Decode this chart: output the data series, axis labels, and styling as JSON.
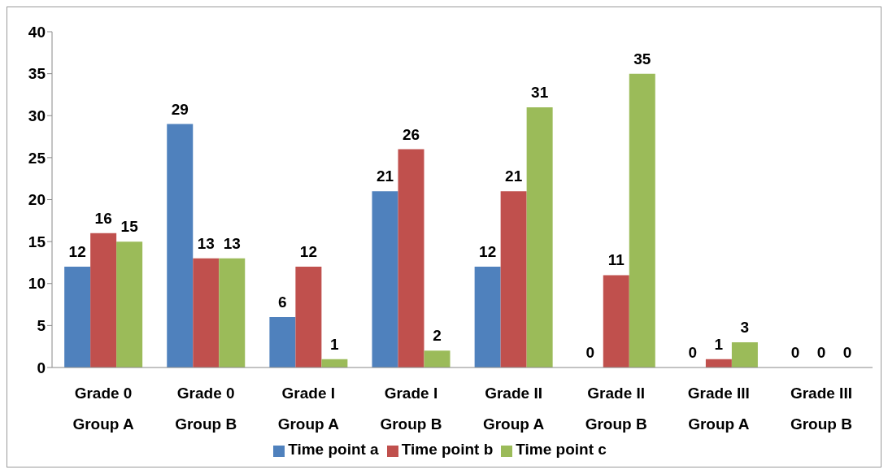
{
  "chart_data": {
    "type": "bar",
    "categories": [
      "Grade 0\nGroup A",
      "Grade 0\nGroup B",
      "Grade I\nGroup A",
      "Grade I\nGroup B",
      "Grade II\nGroup A",
      "Grade II\nGroup B",
      "Grade III\nGroup A",
      "Grade III\nGroup B"
    ],
    "series": [
      {
        "name": "Time point a",
        "color": "#4f81bd",
        "values": [
          12,
          29,
          6,
          21,
          12,
          0,
          0,
          0
        ]
      },
      {
        "name": "Time point b",
        "color": "#c0504d",
        "values": [
          16,
          13,
          12,
          26,
          21,
          11,
          1,
          0
        ]
      },
      {
        "name": "Time point c",
        "color": "#9bbb59",
        "values": [
          15,
          13,
          1,
          2,
          31,
          35,
          3,
          0
        ]
      }
    ],
    "ylim": [
      0,
      40
    ],
    "yticks": [
      0,
      5,
      10,
      15,
      20,
      25,
      30,
      35,
      40
    ],
    "grid": false,
    "legend": "bottom",
    "data_labels": true
  }
}
